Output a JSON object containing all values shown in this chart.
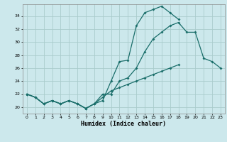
{
  "title": "",
  "xlabel": "Humidex (Indice chaleur)",
  "bg_color": "#cce8ec",
  "grid_color": "#aacccc",
  "line_color": "#1a6e6a",
  "xlim": [
    -0.5,
    23.5
  ],
  "ylim": [
    19.0,
    35.8
  ],
  "xticks": [
    0,
    1,
    2,
    3,
    4,
    5,
    6,
    7,
    8,
    9,
    10,
    11,
    12,
    13,
    14,
    15,
    16,
    17,
    18,
    19,
    20,
    21,
    22,
    23
  ],
  "yticks": [
    20,
    22,
    24,
    26,
    28,
    30,
    32,
    34
  ],
  "line1_y": [
    22.0,
    21.5,
    20.5,
    21.0,
    20.5,
    21.0,
    20.5,
    19.8,
    20.5,
    21.0,
    24.0,
    27.0,
    27.2,
    32.5,
    34.5,
    35.0,
    35.5,
    34.5,
    33.5,
    null,
    null,
    null,
    null,
    null
  ],
  "line2_y": [
    22.0,
    21.5,
    20.5,
    21.0,
    20.5,
    21.0,
    20.5,
    19.8,
    20.5,
    22.0,
    22.0,
    24.0,
    24.5,
    26.0,
    28.5,
    30.5,
    31.5,
    32.5,
    33.0,
    31.5,
    31.5,
    27.5,
    27.0,
    26.0
  ],
  "line3_y": [
    22.0,
    21.5,
    20.5,
    21.0,
    20.5,
    21.0,
    20.5,
    19.8,
    20.5,
    21.5,
    22.5,
    23.0,
    23.5,
    24.0,
    24.5,
    25.0,
    25.5,
    26.0,
    26.5,
    null,
    null,
    null,
    null,
    null
  ]
}
